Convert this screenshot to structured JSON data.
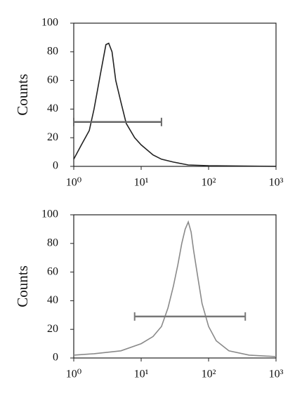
{
  "chart_data": [
    {
      "type": "line",
      "ylabel": "Counts",
      "xscale": "log",
      "xlim": [
        1,
        1000
      ],
      "ylim": [
        0,
        100
      ],
      "xticks": [
        {
          "value": 1,
          "label": "10⁰"
        },
        {
          "value": 10,
          "label": "10¹"
        },
        {
          "value": 100,
          "label": "10²"
        },
        {
          "value": 1000,
          "label": "10³"
        }
      ],
      "yticks": [
        0,
        20,
        40,
        60,
        80,
        100
      ],
      "series": [
        {
          "color": "#222222",
          "x": [
            1,
            1.3,
            1.7,
            2,
            2.5,
            3,
            3.3,
            3.7,
            4.2,
            5,
            6,
            8,
            10,
            15,
            20,
            30,
            50,
            100,
            1000
          ],
          "values": [
            5,
            15,
            25,
            40,
            65,
            85,
            86,
            80,
            60,
            45,
            30,
            20,
            15,
            8,
            5,
            3,
            1,
            0.5,
            0
          ]
        }
      ],
      "gate": {
        "x": [
          1,
          20
        ],
        "y": 31,
        "color": "#666666"
      }
    },
    {
      "type": "line",
      "ylabel": "Counts",
      "xscale": "log",
      "xlim": [
        1,
        1000
      ],
      "ylim": [
        0,
        100
      ],
      "xticks": [
        {
          "value": 1,
          "label": "10⁰"
        },
        {
          "value": 10,
          "label": "10¹"
        },
        {
          "value": 100,
          "label": "10²"
        },
        {
          "value": 1000,
          "label": "10³"
        }
      ],
      "yticks": [
        0,
        20,
        40,
        60,
        80,
        100
      ],
      "series": [
        {
          "color": "#8a8a8a",
          "x": [
            1,
            2,
            5,
            10,
            15,
            20,
            25,
            30,
            35,
            40,
            45,
            50,
            55,
            60,
            70,
            80,
            100,
            130,
            200,
            400,
            1000
          ],
          "values": [
            2,
            3,
            5,
            10,
            15,
            22,
            35,
            50,
            65,
            80,
            90,
            95,
            88,
            75,
            55,
            38,
            22,
            12,
            5,
            2,
            1
          ]
        }
      ],
      "gate": {
        "x": [
          8,
          350
        ],
        "y": 29,
        "color": "#777777"
      }
    }
  ]
}
